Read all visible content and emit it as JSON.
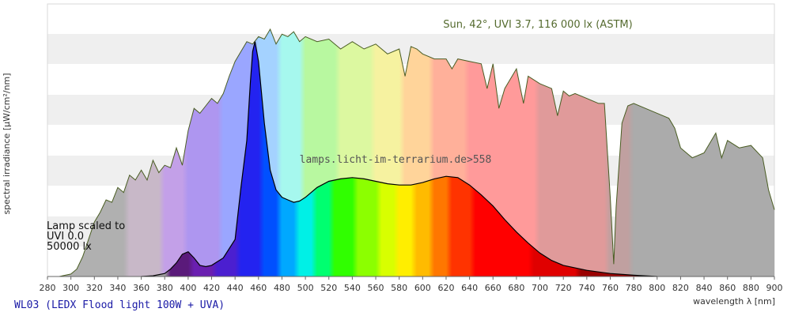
{
  "chart_data": {
    "type": "area",
    "xlabel": "wavelength λ [nm]",
    "ylabel": "spectral irradiance [µW/cm²/nm]",
    "xlim": [
      280,
      900
    ],
    "ylim": [
      0,
      1.0
    ],
    "x_ticks": [
      280,
      300,
      320,
      340,
      360,
      380,
      400,
      420,
      440,
      460,
      480,
      500,
      520,
      540,
      560,
      580,
      600,
      620,
      640,
      660,
      680,
      700,
      720,
      740,
      760,
      780,
      800,
      820,
      840,
      860,
      880,
      900
    ],
    "grid": "horizontal bands",
    "sun_annotation": "Sun, 42°, UVI 3.7, 116 000 lx (ASTM)",
    "watermark": "lamps.licht-im-terrarium.de>558",
    "lamp_annotation": [
      "Lamp scaled to",
      "UVI 0.0",
      "50000 lx"
    ],
    "footer_title": "WL03 (LEDX Flood light 100W + UVA)",
    "series": [
      {
        "name": "Sun, 42°, UVI 3.7, 116 000 lx (ASTM)",
        "x": [
          290,
          300,
          305,
          310,
          315,
          320,
          325,
          330,
          335,
          340,
          345,
          350,
          355,
          360,
          365,
          370,
          375,
          380,
          385,
          390,
          395,
          400,
          405,
          410,
          415,
          420,
          425,
          430,
          435,
          440,
          445,
          450,
          455,
          460,
          465,
          470,
          475,
          480,
          485,
          490,
          495,
          500,
          510,
          520,
          530,
          540,
          550,
          560,
          570,
          580,
          585,
          590,
          595,
          600,
          610,
          620,
          625,
          630,
          640,
          650,
          655,
          660,
          665,
          670,
          680,
          686,
          690,
          700,
          710,
          715,
          720,
          725,
          730,
          740,
          750,
          755,
          760,
          763,
          765,
          770,
          775,
          780,
          790,
          800,
          810,
          815,
          820,
          830,
          840,
          850,
          855,
          860,
          870,
          880,
          890,
          895,
          900
        ],
        "values": [
          0.0,
          0.01,
          0.03,
          0.08,
          0.15,
          0.22,
          0.26,
          0.31,
          0.3,
          0.36,
          0.34,
          0.41,
          0.39,
          0.43,
          0.39,
          0.47,
          0.42,
          0.45,
          0.44,
          0.52,
          0.45,
          0.59,
          0.68,
          0.66,
          0.69,
          0.72,
          0.7,
          0.74,
          0.81,
          0.87,
          0.91,
          0.95,
          0.94,
          0.97,
          0.96,
          1.0,
          0.94,
          0.98,
          0.97,
          0.99,
          0.95,
          0.97,
          0.95,
          0.96,
          0.92,
          0.95,
          0.92,
          0.94,
          0.9,
          0.92,
          0.81,
          0.93,
          0.92,
          0.9,
          0.88,
          0.88,
          0.84,
          0.88,
          0.87,
          0.86,
          0.76,
          0.86,
          0.68,
          0.76,
          0.84,
          0.7,
          0.81,
          0.78,
          0.76,
          0.65,
          0.75,
          0.73,
          0.74,
          0.72,
          0.7,
          0.7,
          0.32,
          0.05,
          0.28,
          0.62,
          0.69,
          0.7,
          0.68,
          0.66,
          0.64,
          0.6,
          0.52,
          0.48,
          0.5,
          0.58,
          0.48,
          0.55,
          0.52,
          0.53,
          0.48,
          0.35,
          0.27
        ]
      },
      {
        "name": "WL03 (LEDX Flood light 100W + UVA)",
        "x": [
          360,
          370,
          380,
          385,
          390,
          395,
          400,
          405,
          410,
          415,
          420,
          430,
          440,
          445,
          450,
          453,
          455,
          457,
          460,
          465,
          470,
          475,
          480,
          485,
          490,
          495,
          500,
          510,
          520,
          530,
          540,
          550,
          560,
          570,
          580,
          590,
          600,
          610,
          620,
          630,
          640,
          650,
          660,
          670,
          680,
          690,
          700,
          710,
          720,
          740,
          760,
          780,
          800
        ],
        "values": [
          0.0,
          0.003,
          0.012,
          0.03,
          0.055,
          0.09,
          0.1,
          0.075,
          0.045,
          0.04,
          0.045,
          0.075,
          0.15,
          0.36,
          0.55,
          0.78,
          0.91,
          0.95,
          0.87,
          0.62,
          0.43,
          0.35,
          0.32,
          0.31,
          0.3,
          0.305,
          0.32,
          0.36,
          0.385,
          0.395,
          0.4,
          0.395,
          0.385,
          0.375,
          0.37,
          0.37,
          0.38,
          0.395,
          0.405,
          0.4,
          0.37,
          0.33,
          0.285,
          0.23,
          0.18,
          0.135,
          0.095,
          0.065,
          0.045,
          0.025,
          0.012,
          0.005,
          0.0
        ]
      }
    ]
  }
}
